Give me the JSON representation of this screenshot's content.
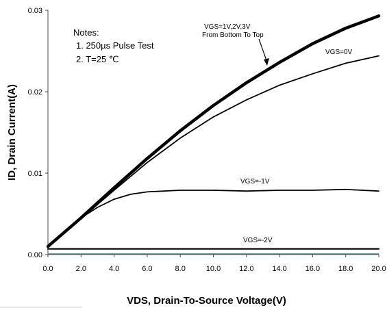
{
  "chart_data": {
    "type": "line",
    "xlabel": "VDS,  Drain-To-Source Voltage(V)",
    "ylabel": "ID,  Drain Current(A)",
    "xlim": [
      0,
      20
    ],
    "ylim": [
      0,
      0.03
    ],
    "x_ticks": [
      "0.0",
      "2.0",
      "4.0",
      "6.0",
      "8.0",
      "10.0",
      "12.0",
      "14.0",
      "16.0",
      "18.0",
      "20.0"
    ],
    "y_ticks": [
      "0.00",
      "0.01",
      "0.02",
      "0.03"
    ],
    "grid": false,
    "notes": [
      "Notes:",
      "1. 250µs  Pulse Test",
      "2. T=25 ℃"
    ],
    "series": [
      {
        "name": "VGS=1V,2V,3V",
        "label_line2": "From Bottom To Top",
        "x": [
          0,
          2,
          4,
          6,
          8,
          10,
          12,
          14,
          16,
          18,
          20
        ],
        "y": [
          0.001,
          0.0045,
          0.0082,
          0.0118,
          0.0152,
          0.0183,
          0.0211,
          0.0236,
          0.0259,
          0.0278,
          0.0293
        ]
      },
      {
        "name": "VGS=0V",
        "x": [
          0,
          2,
          4,
          6,
          8,
          10,
          12,
          14,
          16,
          18,
          20
        ],
        "y": [
          0.001,
          0.0044,
          0.0079,
          0.0113,
          0.0143,
          0.0169,
          0.019,
          0.0208,
          0.0222,
          0.0235,
          0.0244
        ]
      },
      {
        "name": "VGS=-1V",
        "x": [
          0,
          1,
          2,
          3,
          4,
          5,
          6,
          7,
          8,
          10,
          12,
          14,
          16,
          18,
          20
        ],
        "y": [
          0.001,
          0.0028,
          0.0045,
          0.0058,
          0.0068,
          0.0074,
          0.0077,
          0.0078,
          0.0079,
          0.0079,
          0.0078,
          0.0079,
          0.0079,
          0.008,
          0.0078
        ]
      },
      {
        "name": "VGS=-2V",
        "x": [
          0,
          20
        ],
        "y": [
          0.0007,
          0.0007
        ]
      }
    ]
  }
}
